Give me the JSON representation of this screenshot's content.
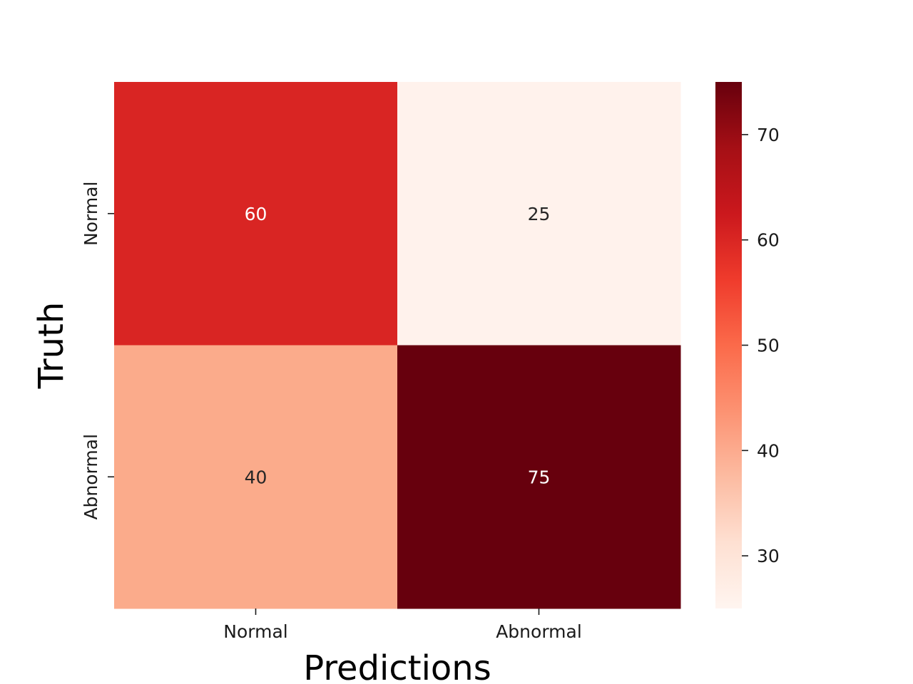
{
  "chart_data": {
    "type": "heatmap",
    "title": "",
    "xlabel": "Predictions",
    "ylabel": "Truth",
    "x_categories": [
      "Normal",
      "Abnormal"
    ],
    "y_categories": [
      "Normal",
      "Abnormal"
    ],
    "values": [
      [
        60,
        25
      ],
      [
        40,
        75
      ]
    ],
    "cell_labels": [
      [
        "60",
        "25"
      ],
      [
        "40",
        "75"
      ]
    ],
    "colormap": "Reds",
    "colorbar": {
      "range": [
        25,
        75
      ],
      "ticks": [
        30,
        40,
        50,
        60,
        70
      ],
      "tick_labels": [
        "30",
        "40",
        "50",
        "60",
        "70"
      ],
      "position": "right"
    },
    "cell_colors": [
      [
        "#d92523",
        "#fff2ec"
      ],
      [
        "#fbab8b",
        "#67000d"
      ]
    ],
    "annotation_text_colors": [
      [
        "#ffffff",
        "#262626"
      ],
      [
        "#262626",
        "#ffffff"
      ]
    ],
    "grid": false
  }
}
